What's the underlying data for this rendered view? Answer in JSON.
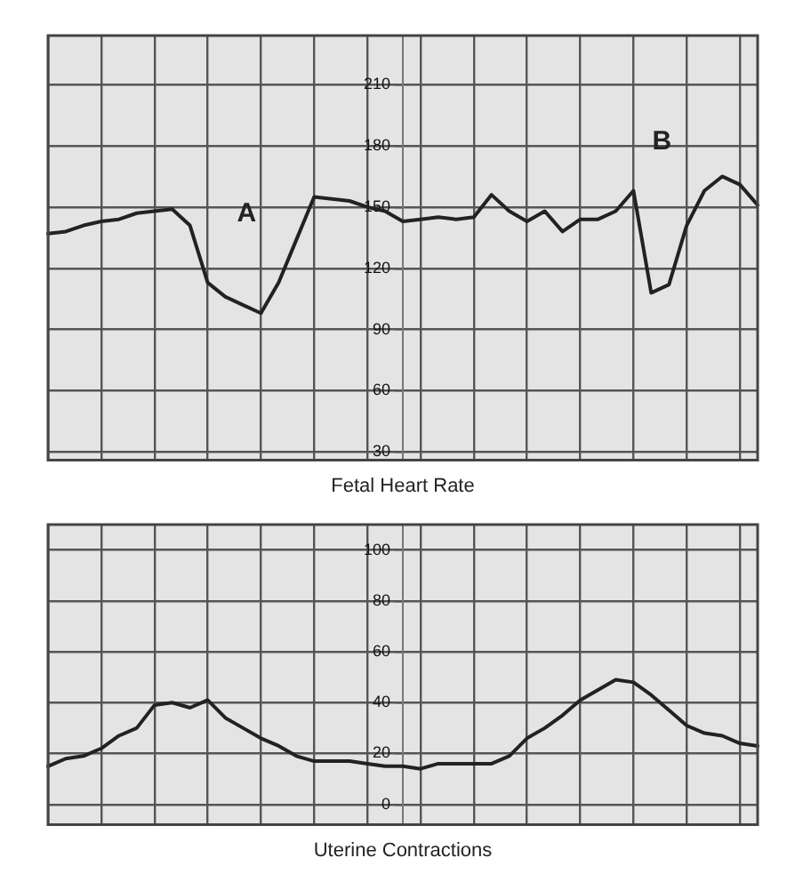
{
  "chart_data": [
    {
      "type": "line",
      "title": "Fetal Heart Rate",
      "categories": [
        null,
        null,
        null,
        null,
        null,
        null,
        null,
        null,
        null,
        null,
        null,
        null,
        null,
        null,
        null,
        null,
        null,
        null,
        null,
        null,
        null,
        null,
        null,
        null,
        null,
        null,
        null,
        null,
        null,
        null,
        null,
        null,
        null,
        null,
        null,
        null,
        null,
        null,
        null,
        null,
        null
      ],
      "series": [
        {
          "color": "#222222",
          "values": [
            137,
            138,
            141,
            143,
            144,
            147,
            148,
            149,
            141,
            113,
            106,
            102,
            98,
            113,
            134,
            155,
            154,
            153,
            150,
            148,
            143,
            144,
            145,
            144,
            145,
            156,
            148,
            143,
            148,
            138,
            144,
            144,
            148,
            158,
            108,
            112,
            141,
            158,
            165,
            161,
            151
          ]
        }
      ],
      "ylim": [
        26,
        234
      ],
      "yticks": [
        30,
        60,
        90,
        120,
        150,
        180,
        210
      ],
      "grid": true,
      "tick_labels": "y",
      "legend": false,
      "marker": "none",
      "line_style": "solid",
      "annotations": [
        "A",
        "B"
      ]
    },
    {
      "type": "line",
      "title": "Uterine Contractions",
      "categories": [
        null,
        null,
        null,
        null,
        null,
        null,
        null,
        null,
        null,
        null,
        null,
        null,
        null,
        null,
        null,
        null,
        null,
        null,
        null,
        null,
        null,
        null,
        null,
        null,
        null,
        null,
        null,
        null,
        null,
        null,
        null,
        null,
        null,
        null,
        null,
        null,
        null,
        null,
        null,
        null,
        null
      ],
      "series": [
        {
          "color": "#222222",
          "values": [
            15,
            18,
            19,
            22,
            27,
            30,
            39,
            40,
            38,
            41,
            34,
            30,
            26,
            23,
            19,
            17,
            17,
            17,
            16,
            15,
            15,
            14,
            16,
            16,
            16,
            16,
            19,
            26,
            30,
            35,
            41,
            45,
            49,
            48,
            43,
            37,
            31,
            28,
            27,
            24,
            23
          ]
        }
      ],
      "ylim": [
        -8,
        110
      ],
      "yticks": [
        0,
        20,
        40,
        60,
        80,
        100
      ],
      "grid": true,
      "tick_labels": "y",
      "legend": false,
      "marker": "none",
      "line_style": "solid"
    }
  ]
}
